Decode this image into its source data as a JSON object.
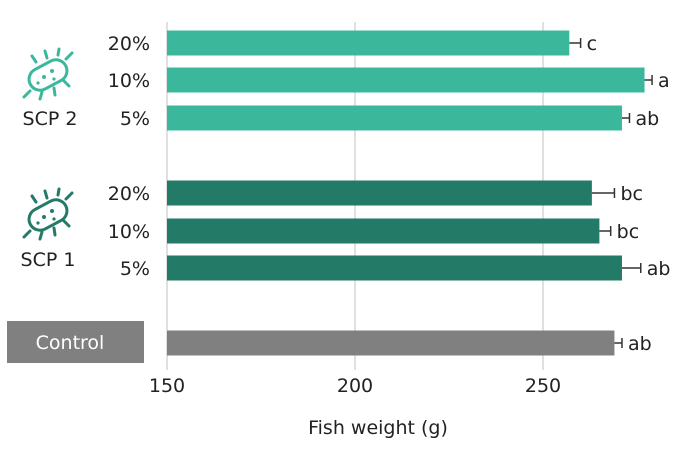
{
  "colors": {
    "scp2": "#3bb89c",
    "scp1": "#237a66",
    "control": "#808080",
    "grid": "#d6d6d6",
    "error": "#333333"
  },
  "groups": [
    {
      "label": "SCP 2",
      "icon": "bacteria-icon",
      "color_key": "scp2"
    },
    {
      "label": "SCP 1",
      "icon": "bacteria-icon",
      "color_key": "scp1"
    },
    {
      "label": "Control",
      "icon": "",
      "color_key": "control"
    }
  ],
  "chart_data": {
    "type": "bar",
    "orientation": "horizontal",
    "xlabel": "Fish weight (g)",
    "xlim": [
      150,
      290
    ],
    "xticks": [
      150,
      200,
      250
    ],
    "grid": true,
    "bars": [
      {
        "group": "SCP 2",
        "category": "20%",
        "value": 257,
        "error": 3,
        "sig": "c",
        "color_key": "scp2"
      },
      {
        "group": "SCP 2",
        "category": "10%",
        "value": 277,
        "error": 2,
        "sig": "a",
        "color_key": "scp2"
      },
      {
        "group": "SCP 2",
        "category": "5%",
        "value": 271,
        "error": 2,
        "sig": "ab",
        "color_key": "scp2"
      },
      {
        "group": "SCP 1",
        "category": "20%",
        "value": 263,
        "error": 6,
        "sig": "bc",
        "color_key": "scp1"
      },
      {
        "group": "SCP 1",
        "category": "10%",
        "value": 265,
        "error": 3,
        "sig": "bc",
        "color_key": "scp1"
      },
      {
        "group": "SCP 1",
        "category": "5%",
        "value": 271,
        "error": 5,
        "sig": "ab",
        "color_key": "scp1"
      },
      {
        "group": "Control",
        "category": "",
        "value": 269,
        "error": 2,
        "sig": "ab",
        "color_key": "control"
      }
    ]
  }
}
